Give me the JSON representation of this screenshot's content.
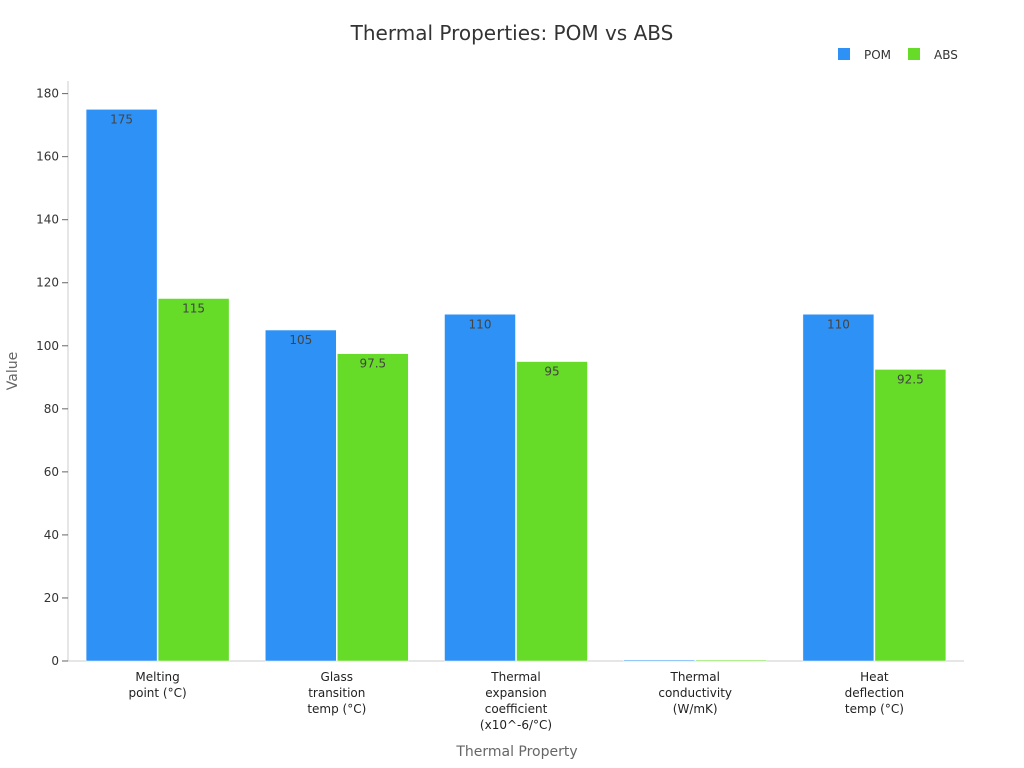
{
  "chart_data": {
    "type": "bar",
    "title": "Thermal Properties: POM vs ABS",
    "xlabel": "Thermal Property",
    "ylabel": "Value",
    "ylim": [
      0,
      184
    ],
    "yticks": [
      0,
      20,
      40,
      60,
      80,
      100,
      120,
      140,
      160,
      180
    ],
    "categories": [
      [
        "Melting",
        "point (°C)"
      ],
      [
        "Glass",
        "transition",
        "temp (°C)"
      ],
      [
        "Thermal",
        "expansion",
        "coefficient",
        "(x10^-6/°C)"
      ],
      [
        "Thermal",
        "conductivity",
        "(W/mK)"
      ],
      [
        "Heat",
        "deflection",
        "temp (°C)"
      ]
    ],
    "series": [
      {
        "name": "POM",
        "color": "#2e91f5",
        "values": [
          175,
          105,
          110,
          0.31,
          110
        ],
        "labels": [
          "175",
          "105",
          "110",
          "",
          "110"
        ]
      },
      {
        "name": "ABS",
        "color": "#66db28",
        "values": [
          115,
          97.5,
          95,
          0.18,
          92.5
        ],
        "labels": [
          "115",
          "97.5",
          "95",
          "",
          "92.5"
        ]
      }
    ],
    "legend_position": "top-right",
    "grid": false
  }
}
